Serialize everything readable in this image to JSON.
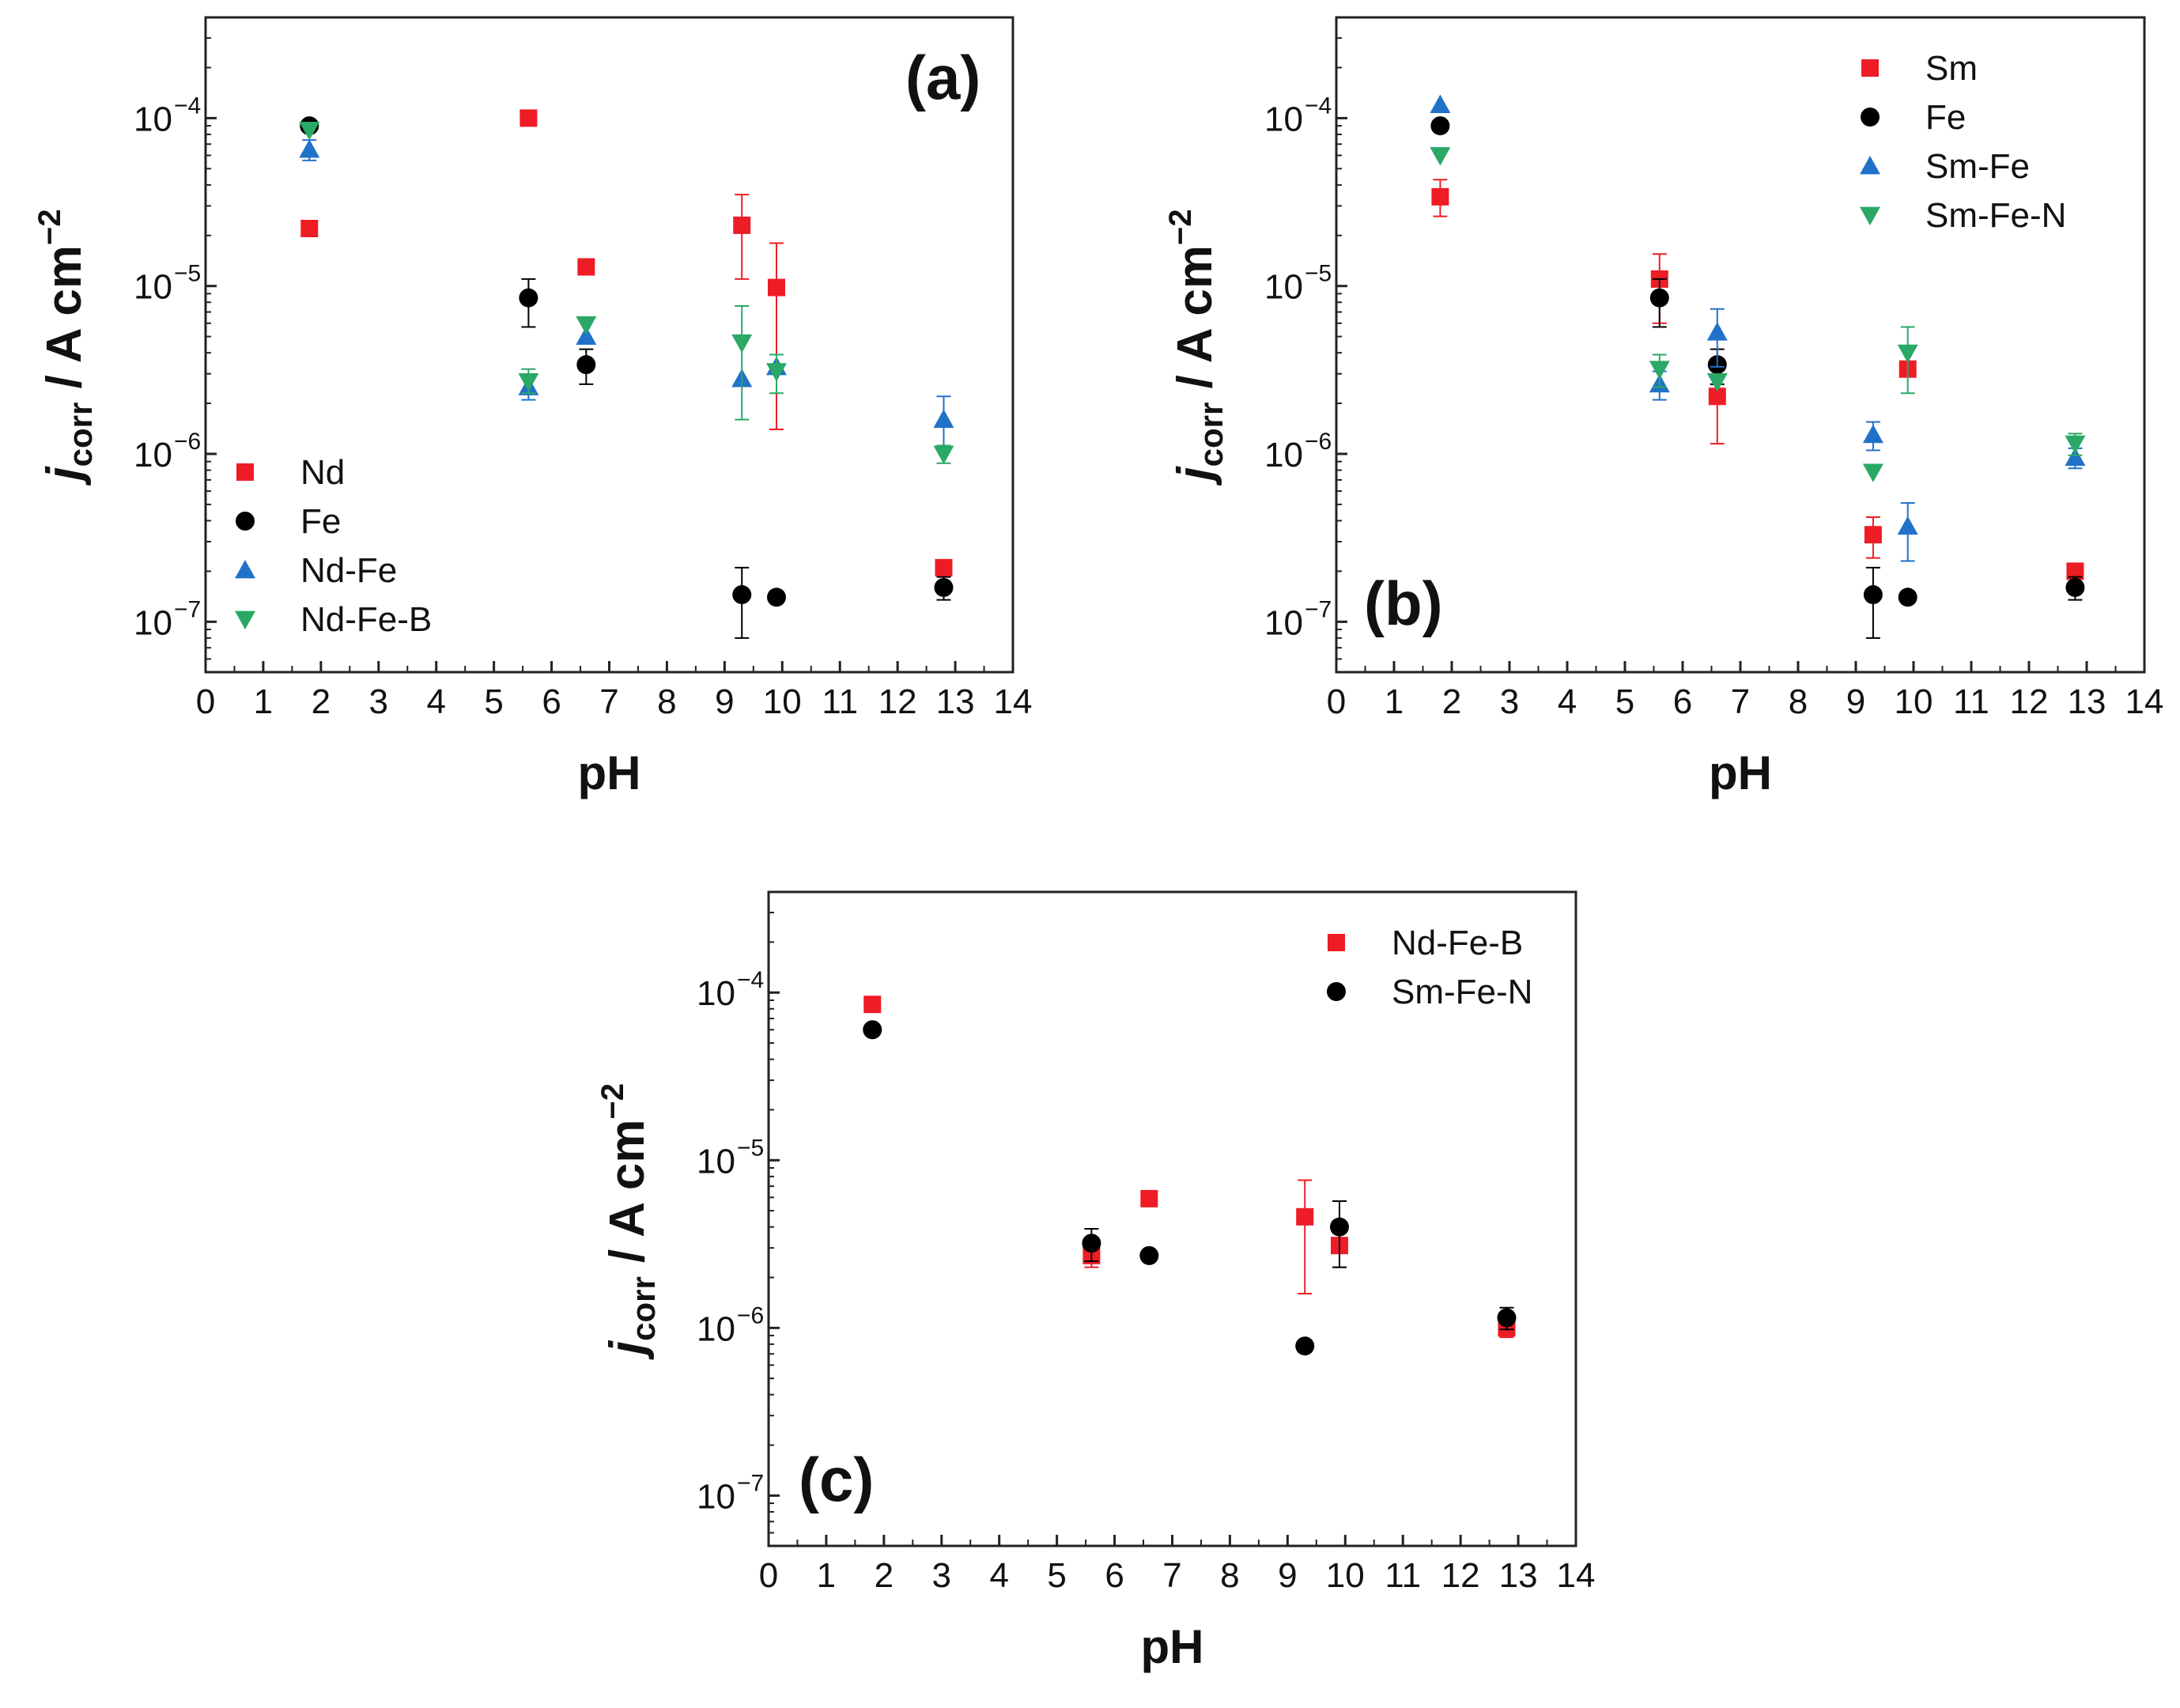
{
  "colors": {
    "red": "#ee1c25",
    "black": "#000000",
    "blue": "#2072c8",
    "green": "#2aa866",
    "frame": "#222222"
  },
  "chart_data": [
    {
      "type": "scatter",
      "panel_label": "(a)",
      "xlabel": "pH",
      "ylabel_main": "j",
      "ylabel_sub": "corr",
      "ylabel_rest": " / A cm",
      "ylabel_sup": "−2",
      "xlim": [
        0,
        14
      ],
      "ylim_log10": [
        -7.3,
        -3.4
      ],
      "x_ticks": [
        "0",
        "1",
        "2",
        "3",
        "4",
        "5",
        "6",
        "7",
        "8",
        "9",
        "10",
        "11",
        "12",
        "13",
        "14"
      ],
      "y_ticks": [
        {
          "base": "10",
          "exp": "−4",
          "value": -4
        },
        {
          "base": "10",
          "exp": "−5",
          "value": -5
        },
        {
          "base": "10",
          "exp": "−6",
          "value": -6
        },
        {
          "base": "10",
          "exp": "−7",
          "value": -7
        }
      ],
      "legend_position": "bottom-left",
      "series": [
        {
          "name": "Nd",
          "marker": "square",
          "color": "#ee1c25",
          "points": [
            {
              "x": 1.8,
              "y": 2.2e-05,
              "lo": 2e-05,
              "hi": 2.4e-05
            },
            {
              "x": 5.6,
              "y": 0.0001
            },
            {
              "x": 6.6,
              "y": 1.3e-05
            },
            {
              "x": 9.3,
              "y": 2.3e-05,
              "lo": 1.1e-05,
              "hi": 3.5e-05
            },
            {
              "x": 9.9,
              "y": 9.8e-06,
              "lo": 1.4e-06,
              "hi": 1.8e-05
            },
            {
              "x": 12.8,
              "y": 2.1e-07
            }
          ]
        },
        {
          "name": "Fe",
          "marker": "circle",
          "color": "#000000",
          "points": [
            {
              "x": 1.8,
              "y": 9e-05
            },
            {
              "x": 5.6,
              "y": 8.5e-06,
              "lo": 5.7e-06,
              "hi": 1.1e-05
            },
            {
              "x": 6.6,
              "y": 3.4e-06,
              "lo": 2.6e-06,
              "hi": 4.2e-06
            },
            {
              "x": 9.3,
              "y": 1.45e-07,
              "lo": 8e-08,
              "hi": 2.1e-07
            },
            {
              "x": 9.9,
              "y": 1.4e-07
            },
            {
              "x": 12.8,
              "y": 1.6e-07,
              "lo": 1.35e-07,
              "hi": 1.85e-07
            }
          ]
        },
        {
          "name": "Nd-Fe",
          "marker": "triangle-up",
          "color": "#2072c8",
          "points": [
            {
              "x": 1.8,
              "y": 6.5e-05,
              "lo": 5.6e-05,
              "hi": 7.4e-05
            },
            {
              "x": 5.6,
              "y": 2.5e-06,
              "lo": 2.1e-06,
              "hi": 2.9e-06
            },
            {
              "x": 6.6,
              "y": 5e-06
            },
            {
              "x": 9.3,
              "y": 2.8e-06
            },
            {
              "x": 9.9,
              "y": 3.3e-06
            },
            {
              "x": 12.8,
              "y": 1.6e-06,
              "lo": 1.1e-06,
              "hi": 2.2e-06
            }
          ]
        },
        {
          "name": "Nd-Fe-B",
          "marker": "triangle-down",
          "color": "#2aa866",
          "points": [
            {
              "x": 1.8,
              "y": 8.5e-05
            },
            {
              "x": 5.6,
              "y": 2.7e-06,
              "lo": 2.3e-06,
              "hi": 3.2e-06
            },
            {
              "x": 6.6,
              "y": 5.9e-06
            },
            {
              "x": 9.3,
              "y": 4.6e-06,
              "lo": 1.6e-06,
              "hi": 7.6e-06
            },
            {
              "x": 9.9,
              "y": 3.1e-06,
              "lo": 2.3e-06,
              "hi": 3.9e-06
            },
            {
              "x": 12.8,
              "y": 1e-06,
              "lo": 8.8e-07,
              "hi": 1.12e-06
            }
          ]
        }
      ]
    },
    {
      "type": "scatter",
      "panel_label": "(b)",
      "xlabel": "pH",
      "ylabel_main": "j",
      "ylabel_sub": "corr",
      "ylabel_rest": " / A cm",
      "ylabel_sup": "−2",
      "xlim": [
        0,
        14
      ],
      "ylim_log10": [
        -7.3,
        -3.4
      ],
      "x_ticks": [
        "0",
        "1",
        "2",
        "3",
        "4",
        "5",
        "6",
        "7",
        "8",
        "9",
        "10",
        "11",
        "12",
        "13",
        "14"
      ],
      "y_ticks": [
        {
          "base": "10",
          "exp": "−4",
          "value": -4
        },
        {
          "base": "10",
          "exp": "−5",
          "value": -5
        },
        {
          "base": "10",
          "exp": "−6",
          "value": -6
        },
        {
          "base": "10",
          "exp": "−7",
          "value": -7
        }
      ],
      "legend_position": "top-right",
      "series": [
        {
          "name": "Sm",
          "marker": "square",
          "color": "#ee1c25",
          "points": [
            {
              "x": 1.8,
              "y": 3.4e-05,
              "lo": 2.6e-05,
              "hi": 4.3e-05
            },
            {
              "x": 5.6,
              "y": 1.1e-05,
              "lo": 6e-06,
              "hi": 1.55e-05
            },
            {
              "x": 6.6,
              "y": 2.2e-06,
              "lo": 1.15e-06,
              "hi": 3.2e-06
            },
            {
              "x": 9.3,
              "y": 3.3e-07,
              "lo": 2.4e-07,
              "hi": 4.2e-07
            },
            {
              "x": 9.9,
              "y": 3.2e-06
            },
            {
              "x": 12.8,
              "y": 2e-07
            }
          ]
        },
        {
          "name": "Fe",
          "marker": "circle",
          "color": "#000000",
          "points": [
            {
              "x": 1.8,
              "y": 9e-05
            },
            {
              "x": 5.6,
              "y": 8.5e-06,
              "lo": 5.7e-06,
              "hi": 1.1e-05
            },
            {
              "x": 6.6,
              "y": 3.4e-06,
              "lo": 2.6e-06,
              "hi": 4.2e-06
            },
            {
              "x": 9.3,
              "y": 1.45e-07,
              "lo": 8e-08,
              "hi": 2.1e-07
            },
            {
              "x": 9.9,
              "y": 1.4e-07
            },
            {
              "x": 12.8,
              "y": 1.6e-07,
              "lo": 1.35e-07,
              "hi": 1.85e-07
            }
          ]
        },
        {
          "name": "Sm-Fe",
          "marker": "triangle-up",
          "color": "#2072c8",
          "points": [
            {
              "x": 1.8,
              "y": 0.00012
            },
            {
              "x": 5.6,
              "y": 2.6e-06,
              "lo": 2.1e-06,
              "hi": 3.1e-06
            },
            {
              "x": 6.6,
              "y": 5.3e-06,
              "lo": 3.3e-06,
              "hi": 7.3e-06
            },
            {
              "x": 9.3,
              "y": 1.3e-06,
              "lo": 1.05e-06,
              "hi": 1.55e-06
            },
            {
              "x": 9.9,
              "y": 3.7e-07,
              "lo": 2.3e-07,
              "hi": 5.1e-07
            },
            {
              "x": 12.8,
              "y": 9.5e-07,
              "lo": 8.2e-07,
              "hi": 1.08e-06
            }
          ]
        },
        {
          "name": "Sm-Fe-N",
          "marker": "triangle-down",
          "color": "#2aa866",
          "points": [
            {
              "x": 1.8,
              "y": 6e-05
            },
            {
              "x": 5.6,
              "y": 3.2e-06,
              "lo": 2.5e-06,
              "hi": 3.9e-06
            },
            {
              "x": 6.6,
              "y": 2.7e-06
            },
            {
              "x": 9.3,
              "y": 7.8e-07
            },
            {
              "x": 9.9,
              "y": 4e-06,
              "lo": 2.3e-06,
              "hi": 5.7e-06
            },
            {
              "x": 12.8,
              "y": 1.15e-06,
              "lo": 9.8e-07,
              "hi": 1.32e-06
            }
          ]
        }
      ]
    },
    {
      "type": "scatter",
      "panel_label": "(c)",
      "xlabel": "pH",
      "ylabel_main": "j",
      "ylabel_sub": "corr",
      "ylabel_rest": " / A cm",
      "ylabel_sup": "−2",
      "xlim": [
        0,
        14
      ],
      "ylim_log10": [
        -7.3,
        -3.4
      ],
      "x_ticks": [
        "0",
        "1",
        "2",
        "3",
        "4",
        "5",
        "6",
        "7",
        "8",
        "9",
        "10",
        "11",
        "12",
        "13",
        "14"
      ],
      "y_ticks": [
        {
          "base": "10",
          "exp": "−4",
          "value": -4
        },
        {
          "base": "10",
          "exp": "−5",
          "value": -5
        },
        {
          "base": "10",
          "exp": "−6",
          "value": -6
        },
        {
          "base": "10",
          "exp": "−7",
          "value": -7
        }
      ],
      "legend_position": "top-right",
      "series": [
        {
          "name": "Nd-Fe-B",
          "marker": "square",
          "color": "#ee1c25",
          "points": [
            {
              "x": 1.8,
              "y": 8.5e-05
            },
            {
              "x": 5.6,
              "y": 2.7e-06,
              "lo": 2.3e-06,
              "hi": 3.2e-06
            },
            {
              "x": 6.6,
              "y": 5.9e-06
            },
            {
              "x": 9.3,
              "y": 4.6e-06,
              "lo": 1.6e-06,
              "hi": 7.6e-06
            },
            {
              "x": 9.9,
              "y": 3.1e-06,
              "lo": 2.3e-06,
              "hi": 3.9e-06
            },
            {
              "x": 12.8,
              "y": 1e-06,
              "lo": 8.8e-07,
              "hi": 1.12e-06
            }
          ]
        },
        {
          "name": "Sm-Fe-N",
          "marker": "circle",
          "color": "#000000",
          "points": [
            {
              "x": 1.8,
              "y": 6e-05
            },
            {
              "x": 5.6,
              "y": 3.2e-06,
              "lo": 2.5e-06,
              "hi": 3.9e-06
            },
            {
              "x": 6.6,
              "y": 2.7e-06
            },
            {
              "x": 9.3,
              "y": 7.8e-07
            },
            {
              "x": 9.9,
              "y": 4e-06,
              "lo": 2.3e-06,
              "hi": 5.7e-06
            },
            {
              "x": 12.8,
              "y": 1.15e-06,
              "lo": 9.8e-07,
              "hi": 1.32e-06
            }
          ]
        }
      ]
    }
  ]
}
